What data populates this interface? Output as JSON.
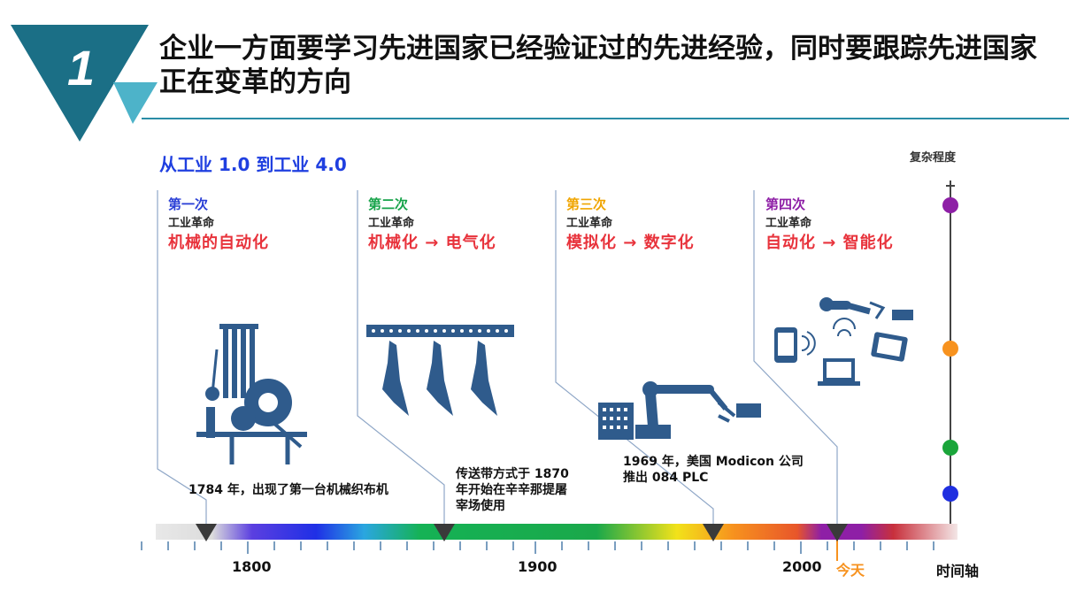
{
  "badge": {
    "number": "1"
  },
  "title": "企业一方面要学习先进国家已经验证过的先进经验，同时要跟踪先进国家正在变革的方向",
  "diagram": {
    "subtitle": "从工业 1.0 到工业 4.0",
    "complexity_label": "复杂程度",
    "axis_label": "时间轴",
    "today_label": "今天",
    "ticks": [
      "1800",
      "1900",
      "2000"
    ],
    "revolutions": [
      {
        "number": "第一次",
        "subtitle": "工业革命",
        "desc": "机械的自动化",
        "color": "#2a3fd6"
      },
      {
        "number": "第二次",
        "subtitle": "工业革命",
        "desc": "机械化 → 电气化",
        "color": "#17a34a"
      },
      {
        "number": "第三次",
        "subtitle": "工业革命",
        "desc": "模拟化 → 数字化",
        "color": "#f0a500"
      },
      {
        "number": "第四次",
        "subtitle": "工业革命",
        "desc": "自动化 → 智能化",
        "color": "#8e1fa6"
      }
    ],
    "milestones": [
      {
        "text": "1784 年，出现了第一台机械织布机"
      },
      {
        "line1": "传送带方式于 1870",
        "line2": "年开始在辛辛那提屠",
        "line3": "宰场使用"
      },
      {
        "line1": "1969 年，美国 Modicon 公司",
        "line2": "推出 084 PLC"
      }
    ],
    "complexity_dots": [
      "#8e1fa6",
      "#f7921e",
      "#1aa53a",
      "#1f2fe0"
    ],
    "colors": {
      "accent": "#2a8da6",
      "title_blue": "#1f3fe0",
      "red": "#e8333c",
      "icon_blue": "#2f5b8c"
    }
  }
}
